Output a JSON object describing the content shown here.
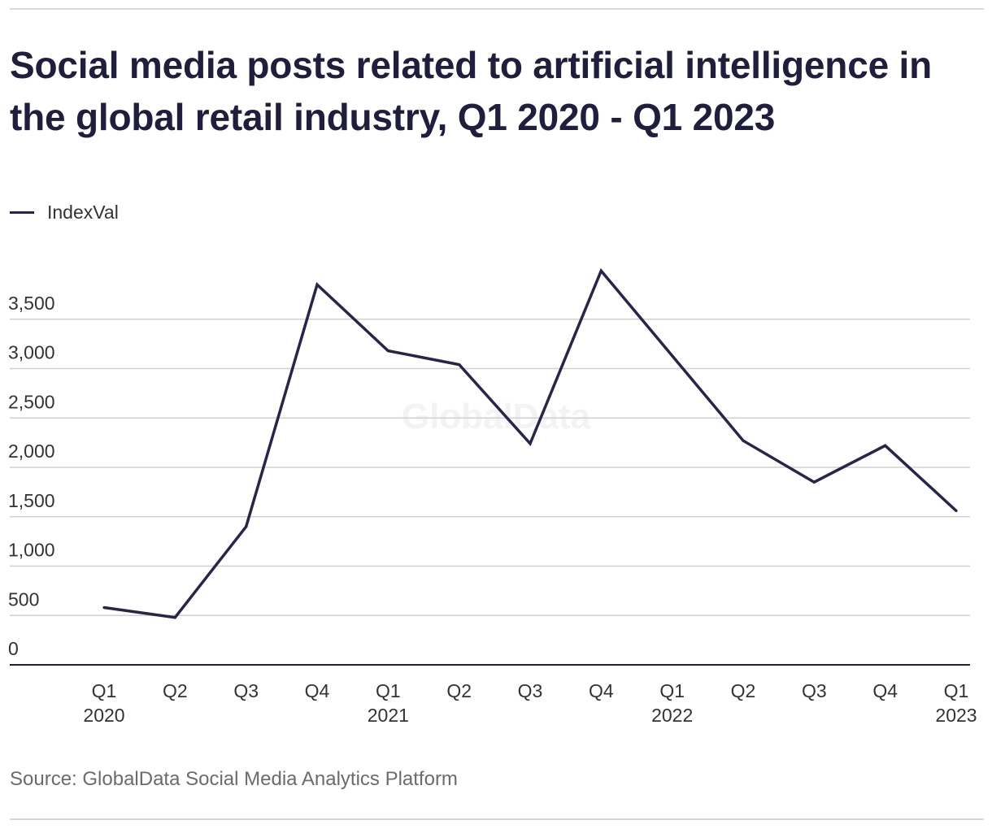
{
  "title": "Social media posts related to artificial intelligence in the global retail industry, Q1 2020 - Q1 2023",
  "legend": {
    "label": "IndexVal"
  },
  "watermark": "GlobalData",
  "source": "Source: GlobalData Social Media Analytics Platform",
  "colors": {
    "line": "#26264a",
    "grid": "#d0d0d0",
    "axis": "#1f1f3d",
    "text": "#333333",
    "source": "#6b6b6b"
  },
  "chart_data": {
    "type": "line",
    "title": "Social media posts related to artificial intelligence in the global retail industry, Q1 2020 - Q1 2023",
    "xlabel": "",
    "ylabel": "",
    "categories": [
      [
        "Q1",
        "2020"
      ],
      [
        "Q2",
        ""
      ],
      [
        "Q3",
        ""
      ],
      [
        "Q4",
        ""
      ],
      [
        "Q1",
        "2021"
      ],
      [
        "Q2",
        ""
      ],
      [
        "Q3",
        ""
      ],
      [
        "Q4",
        ""
      ],
      [
        "Q1",
        "2022"
      ],
      [
        "Q2",
        ""
      ],
      [
        "Q3",
        ""
      ],
      [
        "Q4",
        ""
      ],
      [
        "Q1",
        "2023"
      ]
    ],
    "series": [
      {
        "name": "IndexVal",
        "values": [
          580,
          480,
          1400,
          3850,
          3180,
          3040,
          2240,
          3990,
          3130,
          2270,
          1850,
          2220,
          1560
        ]
      }
    ],
    "yticks": [
      {
        "value": 0,
        "label": "0"
      },
      {
        "value": 500,
        "label": "500"
      },
      {
        "value": 1000,
        "label": "1,000"
      },
      {
        "value": 1500,
        "label": "1,500"
      },
      {
        "value": 2000,
        "label": "2,000"
      },
      {
        "value": 2500,
        "label": "2,500"
      },
      {
        "value": 3000,
        "label": "3,000"
      },
      {
        "value": 3500,
        "label": "3,500"
      }
    ],
    "ylim": [
      0,
      4000
    ],
    "grid": true,
    "legend_position": "top-left"
  }
}
